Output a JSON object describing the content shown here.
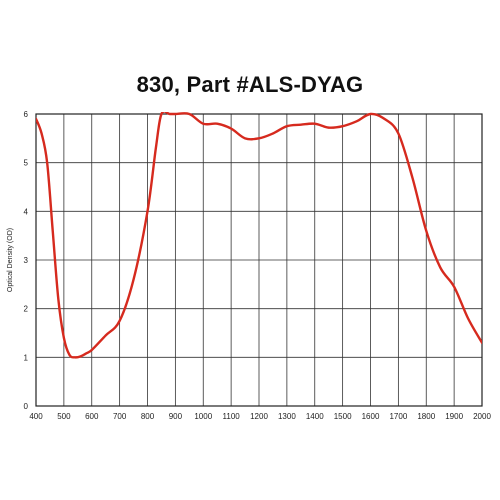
{
  "chart_data": {
    "type": "line",
    "title": "830, Part #ALS-DYAG",
    "xlabel": "",
    "ylabel": "Optical Density (OD)",
    "xlim": [
      400,
      2000
    ],
    "ylim": [
      0,
      6
    ],
    "x_ticks": [
      400,
      500,
      600,
      700,
      800,
      900,
      1000,
      1100,
      1200,
      1300,
      1400,
      1500,
      1600,
      1700,
      1800,
      1900,
      2000
    ],
    "y_ticks": [
      0,
      1,
      2,
      3,
      4,
      5,
      6
    ],
    "grid": true,
    "legend": "none",
    "series": [
      {
        "color": "#d62a1e",
        "x": [
          400,
          420,
          440,
          460,
          480,
          500,
          520,
          540,
          560,
          580,
          600,
          650,
          700,
          750,
          800,
          830,
          850,
          880,
          900,
          950,
          1000,
          1050,
          1100,
          1150,
          1200,
          1250,
          1300,
          1350,
          1400,
          1450,
          1500,
          1550,
          1600,
          1650,
          1700,
          1750,
          1800,
          1850,
          1900,
          1950,
          2000
        ],
        "y": [
          5.9,
          5.6,
          5.0,
          3.6,
          2.2,
          1.4,
          1.05,
          1.0,
          1.02,
          1.08,
          1.15,
          1.45,
          1.75,
          2.6,
          4.0,
          5.3,
          6.0,
          6.0,
          6.0,
          6.0,
          5.8,
          5.8,
          5.7,
          5.5,
          5.5,
          5.6,
          5.75,
          5.78,
          5.8,
          5.72,
          5.75,
          5.85,
          6.0,
          5.9,
          5.6,
          4.7,
          3.6,
          2.85,
          2.45,
          1.8,
          1.3
        ]
      }
    ]
  }
}
